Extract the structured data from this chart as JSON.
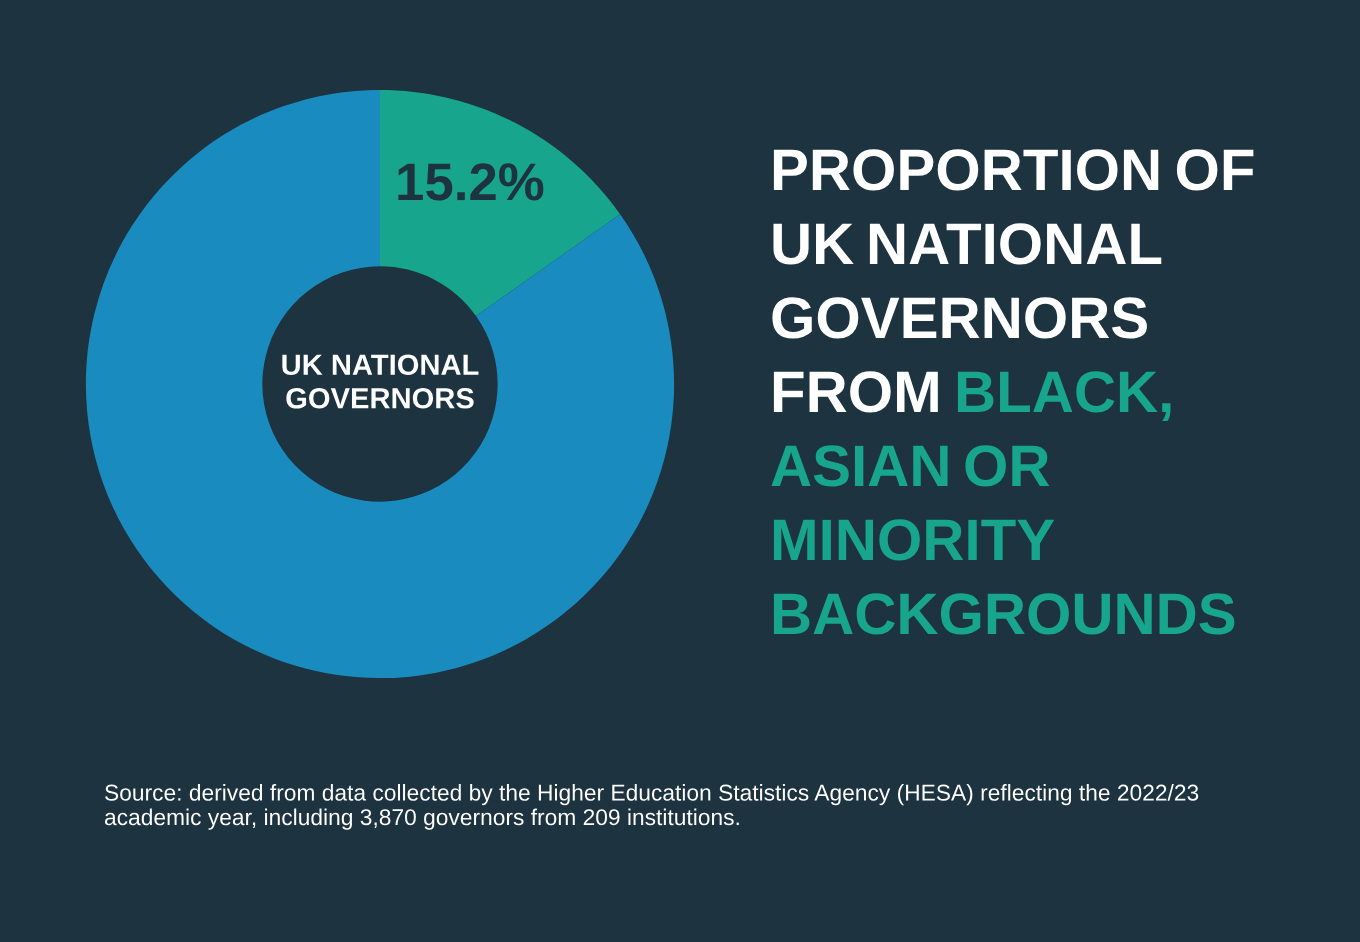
{
  "chart_data": {
    "type": "donut",
    "title": "PROPORTION OF UK NATIONAL GOVERNORS FROM",
    "subtitle": "BLACK, ASIAN OR MINORITY BACKGROUNDS",
    "categories": [
      null,
      null
    ],
    "values": [
      15.2,
      84.8
    ],
    "colors": [
      "#17a58d",
      "#1a8bbf"
    ],
    "value_labels": [
      "15.2%",
      null
    ],
    "annotations": [
      "UK NATIONAL GOVERNORS",
      "Source: derived from data collected by the Higher Education Statistics Agency (HESA) reflecting the 2022/23 academic year, including 3,870 governors from 209 institutions."
    ]
  }
}
